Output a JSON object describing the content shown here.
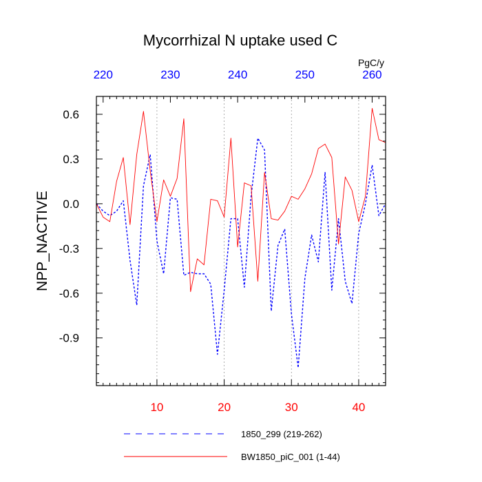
{
  "chart_data": {
    "type": "line",
    "title": "Mycorrhizal N uptake used C",
    "units_label": "PgC/y",
    "ylabel": "NPP_NACTIVE",
    "xlabel": "",
    "bottom_axis": {
      "xlim": [
        1,
        44
      ],
      "ticks": [
        10,
        20,
        30,
        40
      ],
      "tick_color": "#ff0000"
    },
    "top_axis": {
      "xlim": [
        219,
        262
      ],
      "ticks": [
        220,
        230,
        240,
        250,
        260
      ],
      "tick_color": "#0000ff"
    },
    "ylim": [
      -1.22,
      0.72
    ],
    "yticks": [
      0.6,
      0.3,
      0.0,
      -0.3,
      -0.6,
      -0.9
    ],
    "ytick_labels": [
      "0.6",
      "0.3",
      "0.0",
      "-0.3",
      "-0.6",
      "-0.9"
    ],
    "grid": "dotted vertical lines at x = 10, 20, 30, 40",
    "legend_position": "bottom",
    "series": [
      {
        "name": "1850_299 (219-262)",
        "color": "#0000ff",
        "style": "dashed",
        "x": [
          1,
          2,
          3,
          4,
          5,
          6,
          7,
          8,
          9,
          10,
          11,
          12,
          13,
          14,
          15,
          16,
          17,
          18,
          19,
          20,
          21,
          22,
          23,
          24,
          25,
          26,
          27,
          28,
          29,
          30,
          31,
          32,
          33,
          34,
          35,
          36,
          37,
          38,
          39,
          40,
          41,
          42,
          43,
          44
        ],
        "y": [
          0.0,
          -0.05,
          -0.08,
          -0.05,
          0.02,
          -0.38,
          -0.68,
          0.12,
          0.33,
          -0.25,
          -0.47,
          0.04,
          0.03,
          -0.48,
          -0.46,
          -0.47,
          -0.47,
          -0.54,
          -1.01,
          -0.58,
          -0.1,
          -0.1,
          -0.56,
          0.05,
          0.44,
          0.36,
          -0.72,
          -0.28,
          -0.17,
          -0.74,
          -1.1,
          -0.5,
          -0.21,
          -0.39,
          0.21,
          -0.58,
          -0.1,
          -0.52,
          -0.67,
          -0.2,
          0.0,
          0.26,
          -0.08,
          0.0
        ]
      },
      {
        "name": "BW1850_piC_001 (1-44)",
        "color": "#ff0000",
        "style": "solid",
        "x": [
          1,
          2,
          3,
          4,
          5,
          6,
          7,
          8,
          9,
          10,
          11,
          12,
          13,
          14,
          15,
          16,
          17,
          18,
          19,
          20,
          21,
          22,
          23,
          24,
          25,
          26,
          27,
          28,
          29,
          30,
          31,
          32,
          33,
          34,
          35,
          36,
          37,
          38,
          39,
          40,
          41,
          42,
          43,
          44
        ],
        "y": [
          0.0,
          -0.09,
          -0.12,
          0.15,
          0.31,
          -0.14,
          0.33,
          0.62,
          0.22,
          -0.12,
          0.16,
          0.05,
          0.17,
          0.57,
          -0.59,
          -0.37,
          -0.41,
          0.03,
          0.02,
          -0.09,
          0.44,
          -0.29,
          0.14,
          0.12,
          -0.52,
          0.21,
          -0.1,
          -0.11,
          -0.05,
          0.05,
          0.03,
          0.1,
          0.2,
          0.37,
          0.4,
          0.31,
          -0.27,
          0.18,
          0.09,
          -0.12,
          0.05,
          0.64,
          0.43,
          0.41
        ]
      }
    ]
  }
}
